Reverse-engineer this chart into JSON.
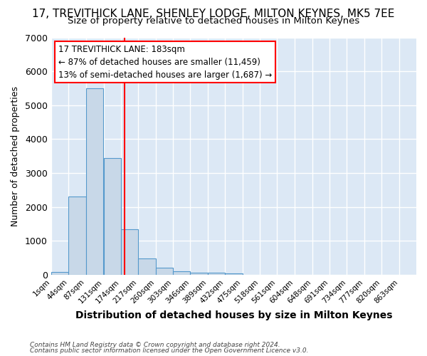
{
  "title": "17, TREVITHICK LANE, SHENLEY LODGE, MILTON KEYNES, MK5 7EE",
  "subtitle": "Size of property relative to detached houses in Milton Keynes",
  "xlabel": "Distribution of detached houses by size in Milton Keynes",
  "ylabel": "Number of detached properties",
  "footer1": "Contains HM Land Registry data © Crown copyright and database right 2024.",
  "footer2": "Contains public sector information licensed under the Open Government Licence v3.0.",
  "bar_left_edges": [
    1,
    44,
    87,
    131,
    174,
    217,
    260,
    303,
    346,
    389,
    432,
    475,
    518,
    561,
    604,
    648,
    691,
    734,
    777,
    820
  ],
  "bar_heights": [
    75,
    2300,
    5500,
    3450,
    1350,
    480,
    200,
    100,
    70,
    70,
    50,
    0,
    0,
    0,
    0,
    0,
    0,
    0,
    0,
    0
  ],
  "bin_width": 43,
  "bar_color": "#c8d8e8",
  "bar_edge_color": "#5599cc",
  "x_tick_labels": [
    "1sqm",
    "44sqm",
    "87sqm",
    "131sqm",
    "174sqm",
    "217sqm",
    "260sqm",
    "303sqm",
    "346sqm",
    "389sqm",
    "432sqm",
    "475sqm",
    "518sqm",
    "561sqm",
    "604sqm",
    "648sqm",
    "691sqm",
    "734sqm",
    "777sqm",
    "820sqm",
    "863sqm"
  ],
  "red_line_x": 183,
  "annotation_text1": "17 TREVITHICK LANE: 183sqm",
  "annotation_text2": "← 87% of detached houses are smaller (11,459)",
  "annotation_text3": "13% of semi-detached houses are larger (1,687) →",
  "ylim": [
    0,
    7000
  ],
  "yticks": [
    0,
    1000,
    2000,
    3000,
    4000,
    5000,
    6000,
    7000
  ],
  "xlim_min": 1,
  "xlim_max": 906,
  "background_color": "#ffffff",
  "plot_bg_color": "#dce8f5",
  "grid_color": "#ffffff",
  "title_fontsize": 11,
  "subtitle_fontsize": 9.5,
  "annotation_fontsize": 8.5,
  "xlabel_fontsize": 10,
  "ylabel_fontsize": 9
}
